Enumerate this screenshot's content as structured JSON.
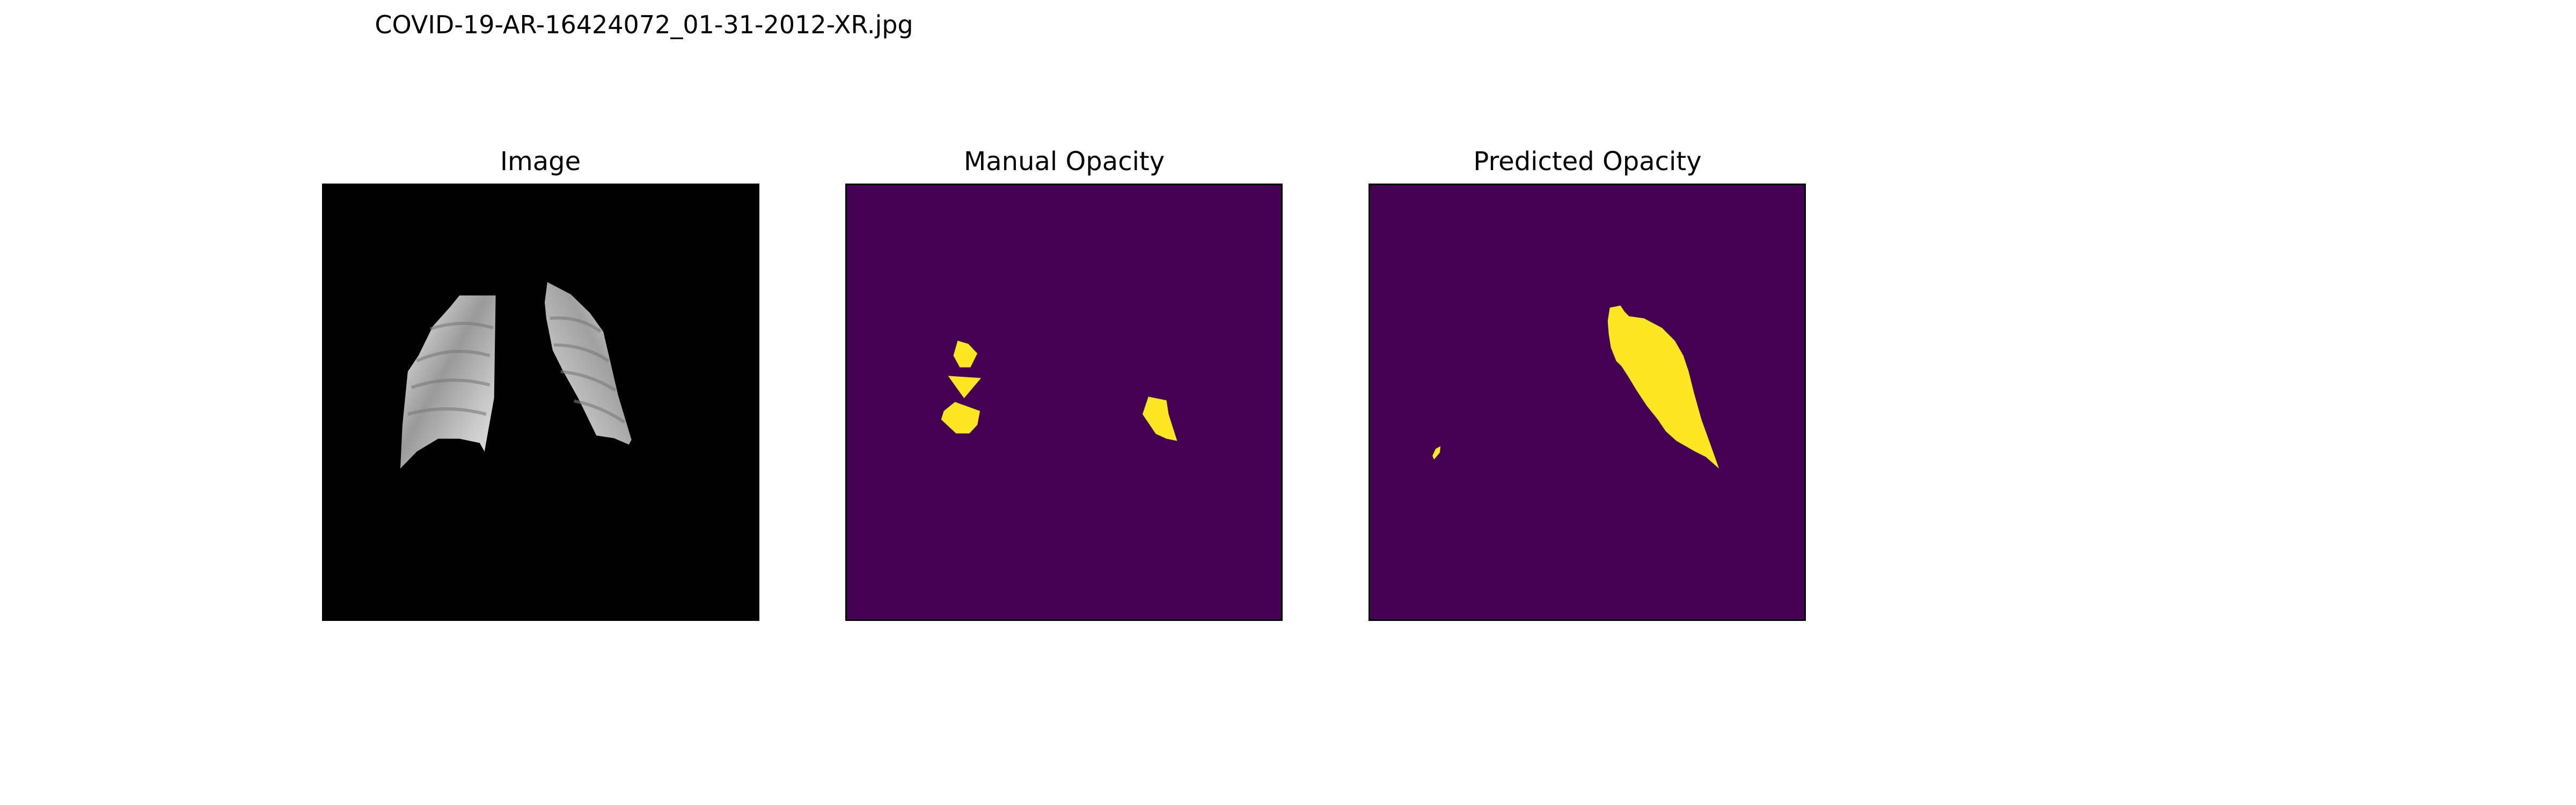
{
  "figure": {
    "title": "COVID-19-AR-16424072_01-31-2012-XR.jpg"
  },
  "panels": [
    {
      "title": "Image"
    },
    {
      "title": "Manual Opacity"
    },
    {
      "title": "Predicted Opacity"
    }
  ],
  "colors": {
    "background": "#ffffff",
    "xray_background": "#000000",
    "mask_background": "#440154",
    "mask_foreground": "#fde725"
  }
}
